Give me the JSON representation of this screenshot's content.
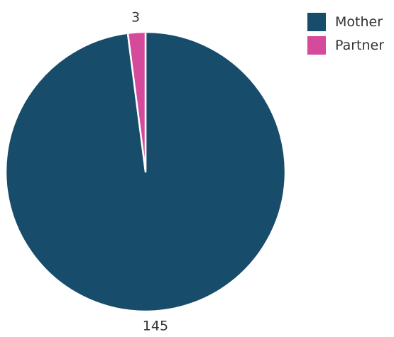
{
  "chart_data": {
    "type": "pie",
    "title": "",
    "series": [
      {
        "name": "Mother",
        "value": 145,
        "label": "145",
        "color": "#174D6B"
      },
      {
        "name": "Partner",
        "value": 3,
        "label": "3",
        "color": "#D64A9B"
      }
    ],
    "legend_position": "top-right",
    "start_angle": "12 o'clock",
    "direction": "clockwise"
  }
}
